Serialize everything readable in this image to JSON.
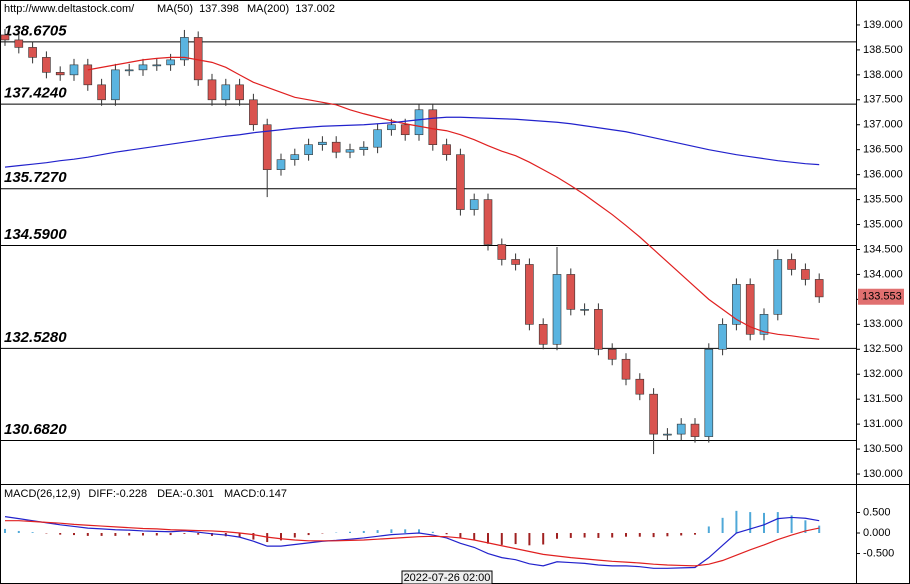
{
  "header": {
    "url": "http://www.deltastock.com/"
  },
  "chart_data": [
    {
      "type": "candlestick",
      "open": [
        138.8,
        138.7,
        138.55,
        138.35,
        138.05,
        138.0,
        138.2,
        137.8,
        137.5,
        138.1,
        138.1,
        138.2,
        138.2,
        138.3,
        138.75,
        137.9,
        137.5,
        137.8,
        137.5,
        137.0,
        136.1,
        136.3,
        136.4,
        136.6,
        136.65,
        136.45,
        136.5,
        136.55,
        136.9,
        137.0,
        136.8,
        137.3,
        136.6,
        136.4,
        135.3,
        135.5,
        134.6,
        134.3,
        134.2,
        133.0,
        132.6,
        134.0,
        133.3,
        133.3,
        132.5,
        132.3,
        131.9,
        131.6,
        130.8,
        130.8,
        131.0,
        130.75,
        132.5,
        133.0,
        133.8,
        132.8,
        133.2,
        134.3,
        134.1,
        133.9
      ],
      "high": [
        138.92,
        138.82,
        138.67,
        138.47,
        138.17,
        138.32,
        138.32,
        137.92,
        138.22,
        138.22,
        138.32,
        138.32,
        138.42,
        138.9,
        138.87,
        138.02,
        137.92,
        137.92,
        137.62,
        137.12,
        136.42,
        136.52,
        136.72,
        136.77,
        136.77,
        136.62,
        136.67,
        137.02,
        137.12,
        137.12,
        137.42,
        137.42,
        136.72,
        136.52,
        135.62,
        135.62,
        134.72,
        134.42,
        134.32,
        133.12,
        134.55,
        134.12,
        133.42,
        133.42,
        132.62,
        132.42,
        132.02,
        131.72,
        130.92,
        131.12,
        131.12,
        132.62,
        133.12,
        133.92,
        133.92,
        133.32,
        134.5,
        134.42,
        134.22,
        134.02
      ],
      "low": [
        138.58,
        138.43,
        138.23,
        137.93,
        137.88,
        137.88,
        137.68,
        137.38,
        137.38,
        137.98,
        137.98,
        138.08,
        138.08,
        138.18,
        137.78,
        137.38,
        137.38,
        137.38,
        136.88,
        135.55,
        135.98,
        136.18,
        136.28,
        136.48,
        136.33,
        136.33,
        136.38,
        136.43,
        136.78,
        136.68,
        136.68,
        136.48,
        136.28,
        135.18,
        135.18,
        134.48,
        134.18,
        134.08,
        132.88,
        132.5,
        132.48,
        133.18,
        133.18,
        132.38,
        132.18,
        131.78,
        131.48,
        130.4,
        130.68,
        130.68,
        130.63,
        130.63,
        132.38,
        132.88,
        132.68,
        132.68,
        133.08,
        133.98,
        133.78,
        133.43
      ],
      "close": [
        138.7,
        138.55,
        138.35,
        138.05,
        138.0,
        138.2,
        137.8,
        137.5,
        138.1,
        138.1,
        138.2,
        138.2,
        138.3,
        138.75,
        137.9,
        137.5,
        137.8,
        137.5,
        137.0,
        136.1,
        136.3,
        136.4,
        136.6,
        136.65,
        136.45,
        136.5,
        136.55,
        136.9,
        137.0,
        136.8,
        137.3,
        136.6,
        136.4,
        135.3,
        135.5,
        134.6,
        134.3,
        134.2,
        133.0,
        132.6,
        134.0,
        133.3,
        133.3,
        132.5,
        132.3,
        131.9,
        131.6,
        130.8,
        130.8,
        131.0,
        130.75,
        132.5,
        133.0,
        133.8,
        132.8,
        133.2,
        134.3,
        134.1,
        133.9,
        133.55
      ],
      "up_color": "#5ab4e0",
      "down_color": "#d9534f",
      "series": [
        {
          "name": "MA(50)",
          "last": 137.398,
          "color": "#e02020",
          "values": [
            null,
            null,
            null,
            null,
            null,
            null,
            138.1,
            138.15,
            138.2,
            138.25,
            138.3,
            138.33,
            138.35,
            138.35,
            138.3,
            138.25,
            138.15,
            138.0,
            137.85,
            137.75,
            137.65,
            137.55,
            137.5,
            137.45,
            137.4,
            137.3,
            137.22,
            137.15,
            137.08,
            137.02,
            136.97,
            136.92,
            136.88,
            136.8,
            136.7,
            136.58,
            136.47,
            136.38,
            136.25,
            136.1,
            135.95,
            135.78,
            135.6,
            135.4,
            135.2,
            134.98,
            134.75,
            134.5,
            134.25,
            134.0,
            133.75,
            133.5,
            133.3,
            133.1,
            132.95,
            132.85,
            132.8,
            132.77,
            132.73,
            132.7
          ]
        },
        {
          "name": "MA(200)",
          "last": 137.002,
          "color": "#2222cc",
          "values": [
            136.15,
            136.18,
            136.21,
            136.24,
            136.28,
            136.31,
            136.35,
            136.4,
            136.45,
            136.49,
            136.53,
            136.57,
            136.61,
            136.65,
            136.69,
            136.73,
            136.77,
            136.8,
            136.84,
            136.87,
            136.9,
            136.93,
            136.95,
            136.97,
            136.98,
            136.99,
            137.0,
            137.02,
            137.04,
            137.07,
            137.1,
            137.13,
            137.15,
            137.15,
            137.14,
            137.13,
            137.12,
            137.11,
            137.09,
            137.07,
            137.05,
            137.02,
            136.98,
            136.94,
            136.9,
            136.86,
            136.8,
            136.74,
            136.68,
            136.62,
            136.56,
            136.5,
            136.45,
            136.4,
            136.36,
            136.32,
            136.28,
            136.25,
            136.22,
            136.2
          ]
        }
      ],
      "levels": [
        {
          "value": 138.6705,
          "label": "138.6705"
        },
        {
          "value": 137.424,
          "label": "137.4240"
        },
        {
          "value": 135.727,
          "label": "135.7270"
        },
        {
          "value": 134.59,
          "label": "134.5900"
        },
        {
          "value": 132.528,
          "label": "132.5280"
        },
        {
          "value": 130.682,
          "label": "130.6820"
        }
      ],
      "level_color": "#e01010",
      "current_price": 133.553,
      "ylim": [
        129.8,
        139.5
      ],
      "yticks": [
        {
          "value": 130,
          "label": "130.000"
        },
        {
          "value": 130.5,
          "label": "130.500"
        },
        {
          "value": 131,
          "label": "131.000"
        },
        {
          "value": 131.5,
          "label": "131.500"
        },
        {
          "value": 132,
          "label": "132.000"
        },
        {
          "value": 132.5,
          "label": "132.500"
        },
        {
          "value": 133,
          "label": "133.000"
        },
        {
          "value": 133.5,
          "label": "133.500"
        },
        {
          "value": 134,
          "label": "134.000"
        },
        {
          "value": 134.5,
          "label": "134.500"
        },
        {
          "value": 135,
          "label": "135.000"
        },
        {
          "value": 135.5,
          "label": "135.500"
        },
        {
          "value": 136,
          "label": "136.000"
        },
        {
          "value": 136.5,
          "label": "136.500"
        },
        {
          "value": 137,
          "label": "137.000"
        },
        {
          "value": 137.5,
          "label": "137.500"
        },
        {
          "value": 138,
          "label": "138.000"
        },
        {
          "value": 138.5,
          "label": "138.500"
        },
        {
          "value": 139,
          "label": "139.000"
        }
      ]
    },
    {
      "type": "macd",
      "title": "MACD(26,12,9)",
      "series": [
        {
          "label": "DIFF:-0.228",
          "color": "#2222cc",
          "values": [
            0.4,
            0.35,
            0.3,
            0.25,
            0.2,
            0.16,
            0.12,
            0.1,
            0.08,
            0.07,
            0.05,
            0.04,
            0.03,
            0.05,
            0.02,
            -0.02,
            -0.05,
            -0.1,
            -0.2,
            -0.32,
            -0.32,
            -0.28,
            -0.24,
            -0.2,
            -0.18,
            -0.15,
            -0.12,
            -0.08,
            -0.04,
            -0.02,
            0.0,
            -0.05,
            -0.12,
            -0.25,
            -0.35,
            -0.5,
            -0.6,
            -0.65,
            -0.75,
            -0.8,
            -0.7,
            -0.72,
            -0.74,
            -0.78,
            -0.8,
            -0.8,
            -0.82,
            -0.86,
            -0.86,
            -0.85,
            -0.84,
            -0.6,
            -0.3,
            0.0,
            0.1,
            0.2,
            0.35,
            0.38,
            0.36,
            0.3
          ]
        },
        {
          "label": "DEA:-0.301",
          "color": "#e02020",
          "values": [
            0.3,
            0.3,
            0.28,
            0.26,
            0.24,
            0.21,
            0.19,
            0.17,
            0.15,
            0.13,
            0.11,
            0.1,
            0.08,
            0.07,
            0.06,
            0.05,
            0.03,
            0.0,
            -0.04,
            -0.1,
            -0.14,
            -0.17,
            -0.19,
            -0.19,
            -0.19,
            -0.18,
            -0.17,
            -0.15,
            -0.13,
            -0.11,
            -0.09,
            -0.08,
            -0.09,
            -0.12,
            -0.17,
            -0.24,
            -0.31,
            -0.38,
            -0.45,
            -0.52,
            -0.56,
            -0.6,
            -0.63,
            -0.66,
            -0.69,
            -0.71,
            -0.73,
            -0.76,
            -0.78,
            -0.79,
            -0.8,
            -0.76,
            -0.67,
            -0.54,
            -0.41,
            -0.29,
            -0.16,
            -0.05,
            0.05,
            0.12
          ]
        }
      ],
      "histogram": {
        "label": "MACD:0.147",
        "pos_color": "#4fa8d8",
        "neg_color": "#a02020",
        "values": [
          0.1,
          0.05,
          0.02,
          -0.01,
          -0.04,
          -0.05,
          -0.07,
          -0.07,
          -0.07,
          -0.06,
          -0.06,
          -0.06,
          -0.05,
          -0.02,
          -0.04,
          -0.07,
          -0.08,
          -0.1,
          -0.16,
          -0.22,
          -0.18,
          -0.11,
          -0.05,
          -0.01,
          0.01,
          0.03,
          0.05,
          0.07,
          0.09,
          0.09,
          0.09,
          0.03,
          -0.03,
          -0.13,
          -0.18,
          -0.26,
          -0.29,
          -0.27,
          -0.3,
          -0.28,
          -0.14,
          -0.12,
          -0.11,
          -0.12,
          -0.11,
          -0.09,
          -0.09,
          -0.1,
          -0.08,
          -0.06,
          -0.04,
          0.16,
          0.37,
          0.54,
          0.51,
          0.49,
          0.51,
          0.43,
          0.31,
          0.18
        ]
      },
      "ylim": [
        -0.95,
        1.17
      ],
      "yticks": [
        {
          "value": 0.5,
          "label": "0.500"
        },
        {
          "value": 0,
          "label": "0.000"
        },
        {
          "value": -0.5,
          "label": "-0.500"
        }
      ],
      "crosshair_label": "2022-07-26 02:00"
    }
  ]
}
